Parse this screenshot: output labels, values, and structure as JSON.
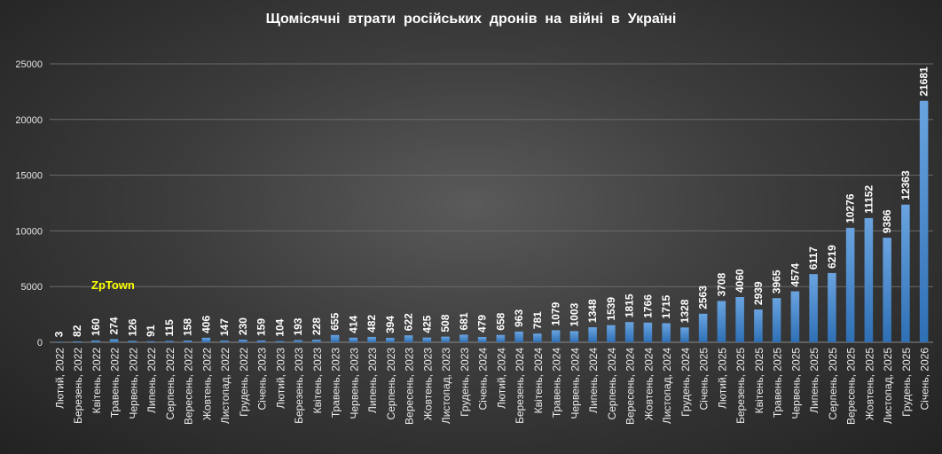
{
  "title": "Щомісячні  втрати  російських  дронів  на  війні  в  Україні",
  "watermark": "ZpTown",
  "colors": {
    "bar_top": "#6aa4e0",
    "bar_bottom": "#2e6fb5",
    "text": "#ffffff",
    "watermark": "#ffff00"
  },
  "chart_data": {
    "type": "bar",
    "title": "Щомісячні  втрати  російських  дронів  на  війні  в  Україні",
    "xlabel": "",
    "ylabel": "",
    "ylim": [
      0,
      25000
    ],
    "yticks": [
      0,
      5000,
      10000,
      15000,
      20000,
      25000
    ],
    "grid": true,
    "categories": [
      "Лютий, 2022",
      "Березень, 2022",
      "Квітень, 2022",
      "Травень, 2022",
      "Червень, 2022",
      "Липень, 2022",
      "Серпень, 2022",
      "Вересень, 2022",
      "Жовтень, 2022",
      "Листопад, 2022",
      "Грудень, 2022",
      "Січень, 2023",
      "Лютий, 2023",
      "Березень, 2023",
      "Квітень, 2023",
      "Травень, 2023",
      "Червень, 2023",
      "Липень, 2023",
      "Серпень, 2023",
      "Вересень, 2023",
      "Жовтень, 2023",
      "Листопад, 2023",
      "Грудень, 2023",
      "Січень, 2024",
      "Лютий, 2024",
      "Березень, 2024",
      "Квітень, 2024",
      "Травень, 2024",
      "Червень, 2024",
      "Липень, 2024",
      "Серпень, 2024",
      "Вересень, 2024",
      "Жовтень, 2024",
      "Листопад, 2024",
      "Грудень, 2024",
      "Січень, 2025",
      "Лютий, 2025",
      "Березень, 2025",
      "Квітень, 2025",
      "Травень, 2025",
      "Червень, 2025",
      "Липень, 2025",
      "Серпень, 2025",
      "Вересень, 2025",
      "Жовтень, 2025",
      "Листопад, 2025",
      "Грудень, 2025",
      "Січень, 2026"
    ],
    "values": [
      3,
      82,
      160,
      274,
      126,
      91,
      115,
      158,
      406,
      147,
      230,
      159,
      104,
      193,
      228,
      655,
      414,
      482,
      394,
      622,
      425,
      508,
      681,
      479,
      658,
      963,
      781,
      1079,
      1003,
      1348,
      1539,
      1815,
      1766,
      1715,
      1328,
      2563,
      3708,
      4060,
      2939,
      3965,
      4574,
      6117,
      6219,
      10276,
      11152,
      9386,
      12363,
      21681
    ]
  }
}
